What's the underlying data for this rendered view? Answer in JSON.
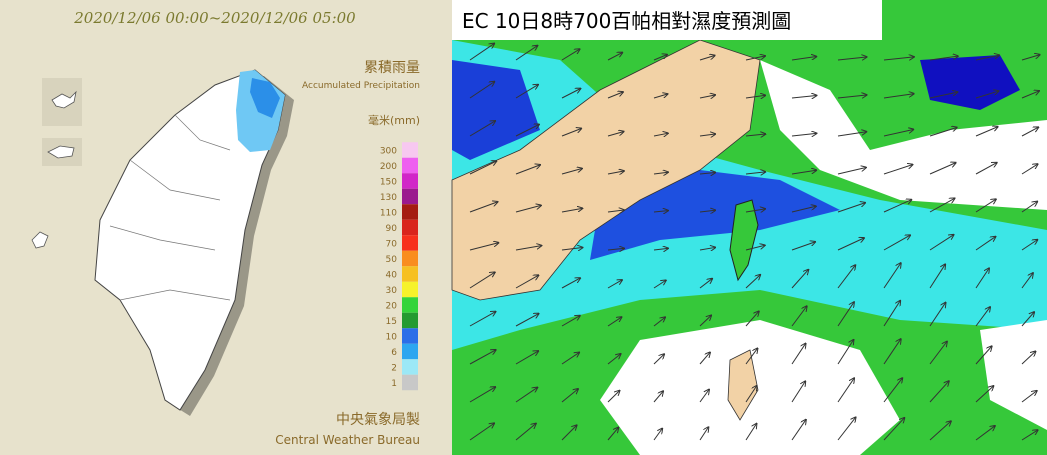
{
  "left_map": {
    "time_range": "2020/12/06 00:00~2020/12/06 05:00",
    "title_zh": "累積雨量",
    "title_en": "Accumulated Precipitation",
    "unit": "毫米(mm)",
    "legend": [
      {
        "label": 300,
        "color": "#f7c8f0"
      },
      {
        "label": 200,
        "color": "#ee5ff0"
      },
      {
        "label": 150,
        "color": "#d126c8"
      },
      {
        "label": 130,
        "color": "#9b1a8e"
      },
      {
        "label": 110,
        "color": "#a51d12"
      },
      {
        "label": 90,
        "color": "#d9251c"
      },
      {
        "label": 70,
        "color": "#f7311c"
      },
      {
        "label": 50,
        "color": "#f98d1e"
      },
      {
        "label": 40,
        "color": "#f6c022"
      },
      {
        "label": 30,
        "color": "#f6f22a"
      },
      {
        "label": 20,
        "color": "#33d43a"
      },
      {
        "label": 15,
        "color": "#239a30"
      },
      {
        "label": 10,
        "color": "#2b6ee8"
      },
      {
        "label": 6,
        "color": "#2da6f0"
      },
      {
        "label": 2,
        "color": "#9ce8f6"
      },
      {
        "label": 1,
        "color": "#c8c8c8"
      }
    ],
    "credit_zh": "中央氣象局製",
    "credit_en": "Central Weather Bureau"
  },
  "right_map": {
    "title": "EC 10日8時700百帕相對濕度預測圖"
  }
}
